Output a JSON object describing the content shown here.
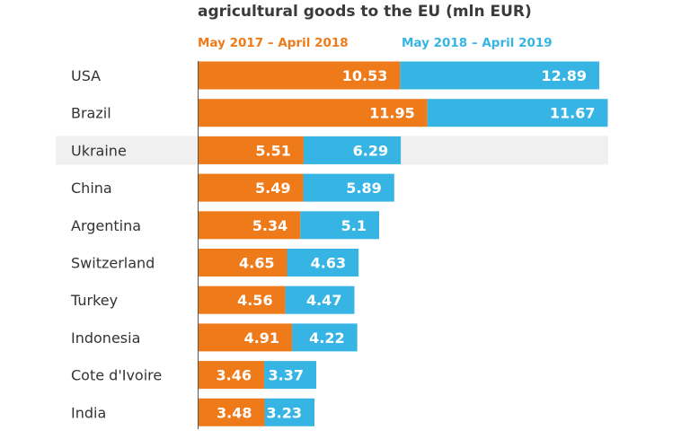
{
  "chart_data": {
    "type": "bar",
    "title": "agricultural goods to the EU (mln EUR)",
    "highlight": "Ukraine",
    "categories": [
      "USA",
      "Brazil",
      "Ukraine",
      "China",
      "Argentina",
      "Switzerland",
      "Turkey",
      "Indonesia",
      "Cote d'Ivoire",
      "India"
    ],
    "series": [
      {
        "name": "May 2017 – April 2018",
        "color": "#ef7a1a",
        "values": [
          10.53,
          11.95,
          5.51,
          5.49,
          5.34,
          4.65,
          4.56,
          4.91,
          3.46,
          3.48
        ]
      },
      {
        "name": "May 2018 – April 2019",
        "color": "#36b5e5",
        "values": [
          12.89,
          11.67,
          6.29,
          5.89,
          5.1,
          4.63,
          4.47,
          4.22,
          3.37,
          3.23
        ]
      }
    ],
    "xlabel": "",
    "ylabel": ""
  }
}
